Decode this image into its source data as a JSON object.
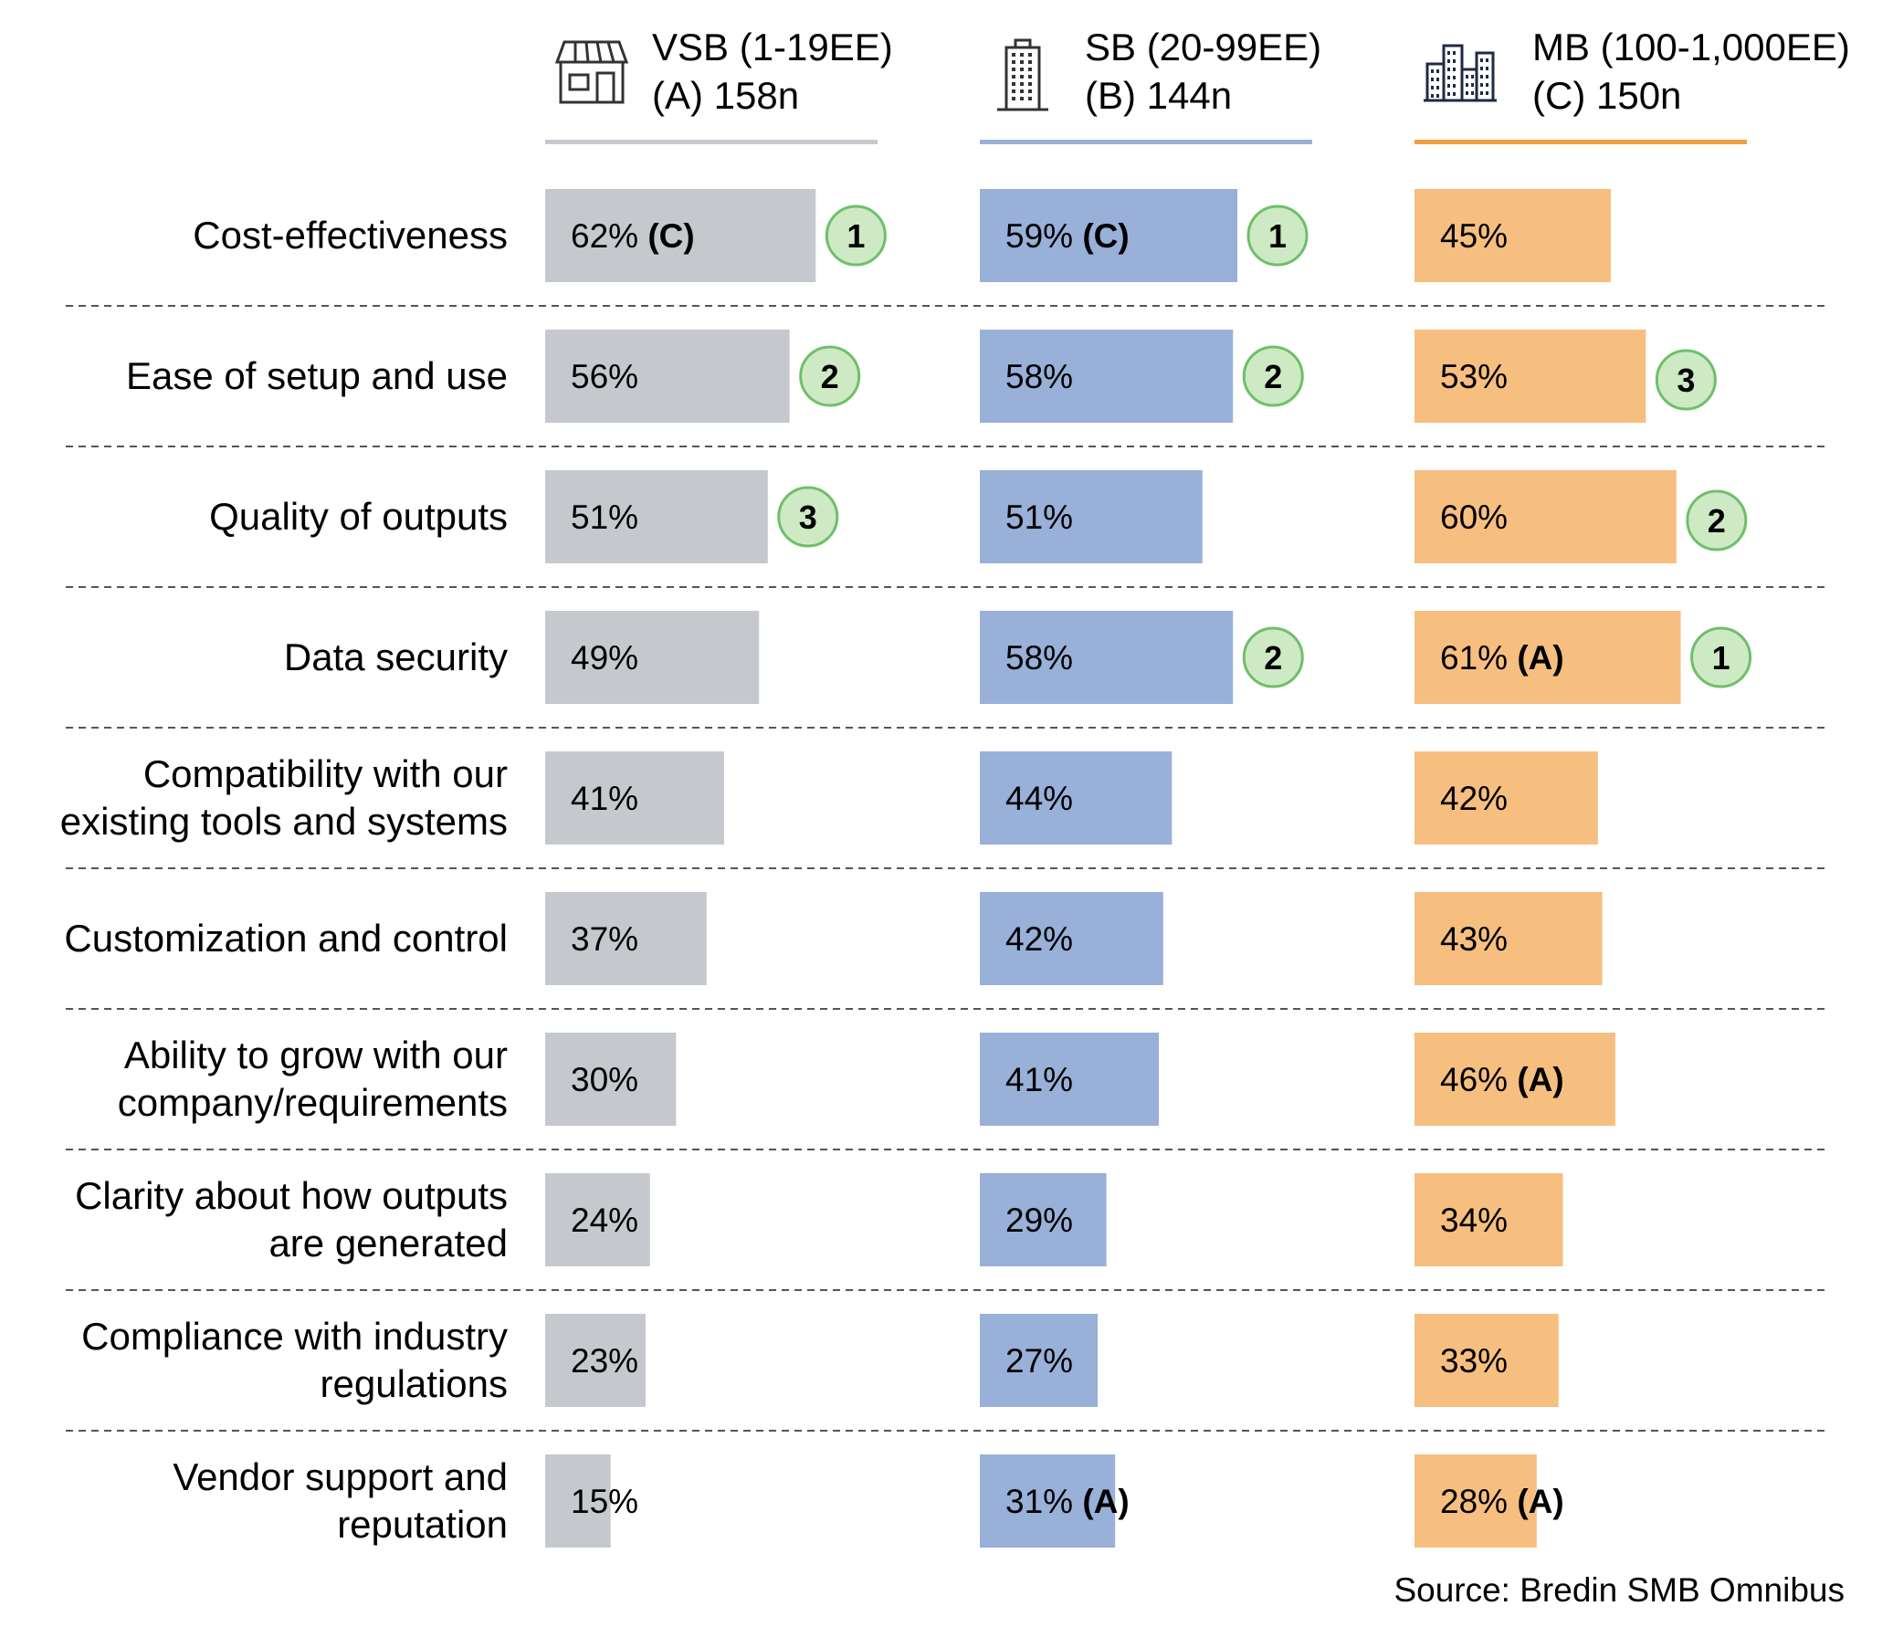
{
  "chart_data": {
    "type": "bar",
    "orientation": "horizontal",
    "categories": [
      "Cost-effectiveness",
      "Ease of setup and use",
      "Quality of outputs",
      "Data security",
      "Compatibility with our existing tools and systems",
      "Customization and control",
      "Ability to grow with our company/requirements",
      "Clarity about how outputs are generated",
      "Compliance with industry regulations",
      "Vendor support and reputation"
    ],
    "category_lines": [
      [
        "Cost-effectiveness"
      ],
      [
        "Ease of setup and use"
      ],
      [
        "Quality of outputs"
      ],
      [
        "Data security"
      ],
      [
        "Compatibility with our",
        "existing tools and systems"
      ],
      [
        "Customization and control"
      ],
      [
        "Ability to grow with our",
        "company/requirements"
      ],
      [
        "Clarity about how outputs",
        "are generated"
      ],
      [
        "Compliance with industry",
        "regulations"
      ],
      [
        "Vendor support and",
        "reputation"
      ]
    ],
    "series": [
      {
        "name": "VSB (1-19EE)",
        "header_lines": [
          "VSB (1-19EE)",
          "(A) 158n"
        ],
        "icon": "storefront-icon",
        "color": "#c5c9cd",
        "rule_color": "#c5c9cd",
        "values": [
          62,
          56,
          51,
          49,
          41,
          37,
          30,
          24,
          23,
          15
        ],
        "sig": [
          "(C)",
          "",
          "",
          "",
          "",
          "",
          "",
          "",
          "",
          ""
        ],
        "rank": [
          1,
          2,
          3,
          null,
          null,
          null,
          null,
          null,
          null,
          null
        ]
      },
      {
        "name": "SB (20-99EE)",
        "header_lines": [
          "SB (20-99EE)",
          "(B) 144n"
        ],
        "icon": "office-building-icon",
        "color": "#99b0d8",
        "rule_color": "#99b0d8",
        "values": [
          59,
          58,
          51,
          58,
          44,
          42,
          41,
          29,
          27,
          31
        ],
        "sig": [
          "(C)",
          "",
          "",
          "",
          "",
          "",
          "",
          "",
          "",
          "(A)"
        ],
        "rank": [
          1,
          2,
          null,
          2,
          null,
          null,
          null,
          null,
          null,
          null
        ]
      },
      {
        "name": "MB (100-1,000EE)",
        "header_lines": [
          "MB (100-1,000EE)",
          "(C) 150n"
        ],
        "icon": "city-buildings-icon",
        "color": "#f6bf80",
        "rule_color": "#f0a040",
        "values": [
          45,
          53,
          60,
          61,
          42,
          43,
          46,
          34,
          33,
          28
        ],
        "sig": [
          "",
          "",
          "",
          "(A)",
          "",
          "",
          "(A)",
          "",
          "",
          "(A)"
        ],
        "rank": [
          null,
          3,
          2,
          1,
          null,
          null,
          null,
          null,
          null,
          null
        ]
      }
    ],
    "unit": "%",
    "rank_badge_color": "#cdeac4",
    "rank_badge_border": "#6fbf6a",
    "source": "Source: Bredin SMB Omnibus"
  }
}
